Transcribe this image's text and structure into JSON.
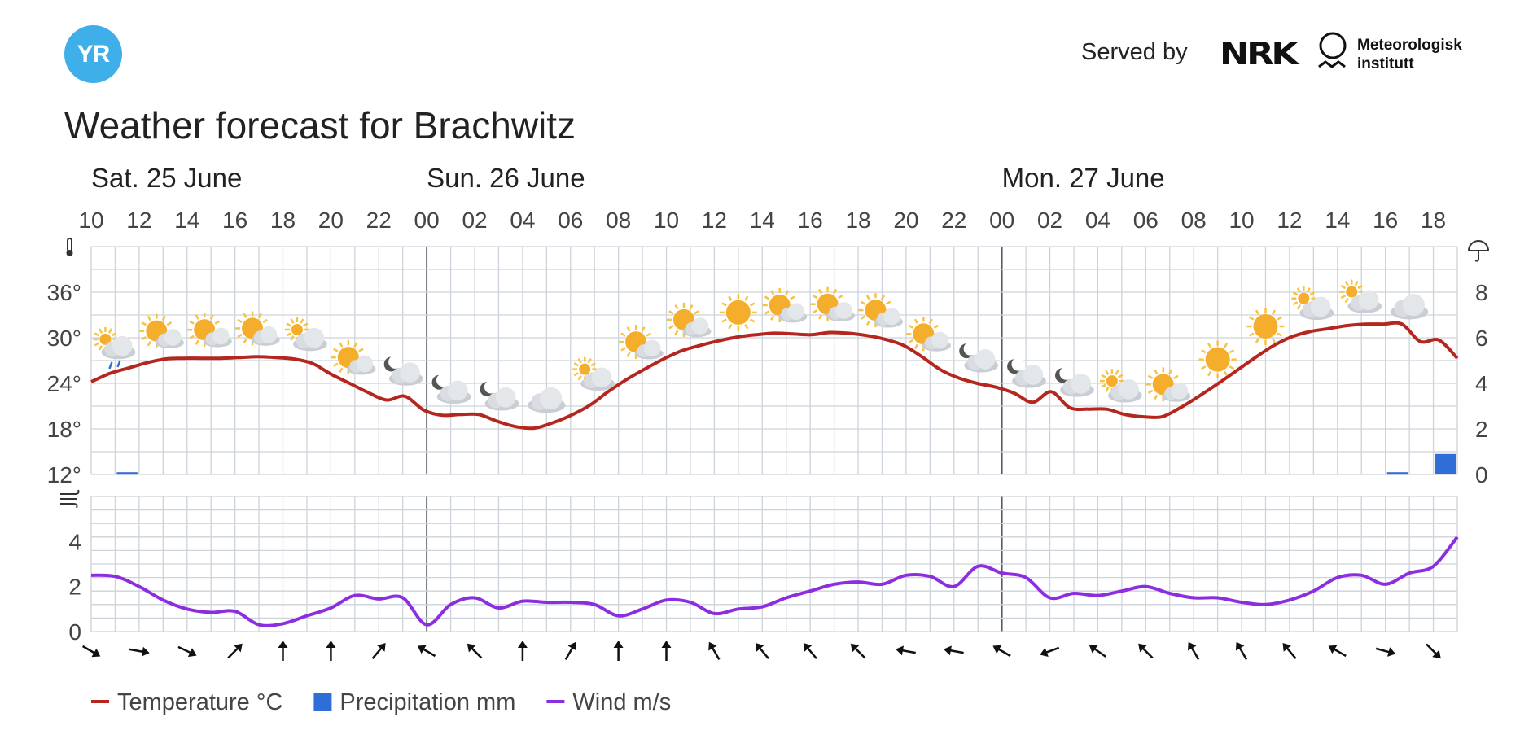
{
  "header": {
    "logo_text": "YR",
    "served_by": "Served by",
    "nrk_text": "NRK",
    "met_line1": "Meteorologisk",
    "met_line2": "institutt",
    "title": "Weather forecast for Brachwitz"
  },
  "chart_data": {
    "type": "line",
    "title": "Weather forecast for Brachwitz",
    "day_labels": [
      {
        "label": "Sat. 25 June",
        "hour_index": 0
      },
      {
        "label": "Sun. 26 June",
        "hour_index": 14
      },
      {
        "label": "Mon. 27 June",
        "hour_index": 38
      }
    ],
    "hour_tick_labels": [
      "10",
      "12",
      "14",
      "16",
      "18",
      "20",
      "22",
      "00",
      "02",
      "04",
      "06",
      "08",
      "10",
      "12",
      "14",
      "16",
      "18",
      "20",
      "22",
      "00",
      "02",
      "04",
      "06",
      "08",
      "10",
      "12",
      "14",
      "16",
      "18"
    ],
    "x_range_hours": [
      0,
      57
    ],
    "temperature_axis": {
      "ticks": [
        "12°",
        "18°",
        "24°",
        "30°",
        "36°"
      ],
      "ylim": [
        12,
        42
      ]
    },
    "precipitation_axis": {
      "ticks": [
        "0",
        "2",
        "4",
        "6",
        "8"
      ],
      "ylim": [
        0,
        10
      ]
    },
    "wind_axis": {
      "ticks": [
        "0",
        "2",
        "4"
      ],
      "ylim": [
        0,
        6
      ]
    },
    "series": [
      {
        "name": "Temperature °C",
        "color": "#b5261e",
        "values": [
          24.2,
          25.3,
          26.0,
          26.7,
          27.2,
          27.3,
          27.3,
          27.3,
          27.4,
          27.5,
          27.4,
          27.2,
          26.6,
          25.2,
          24.0,
          22.8,
          21.8,
          22.3,
          20.5,
          19.8,
          19.9,
          19.9,
          19.0,
          18.3,
          18.1,
          18.8,
          19.8,
          21.1,
          22.9,
          24.5,
          25.9,
          27.2,
          28.3,
          29.0,
          29.6,
          30.1,
          30.4,
          30.6,
          30.5,
          30.4,
          30.7,
          30.6,
          30.3,
          29.8,
          29.0,
          27.5,
          25.8,
          24.7,
          24.0,
          23.5,
          22.7,
          21.5,
          22.9,
          20.8,
          20.6,
          20.6,
          19.9,
          19.6,
          19.6,
          20.8,
          22.3,
          23.9,
          25.6,
          27.3,
          28.9,
          30.1,
          30.8,
          31.2,
          31.6,
          31.8,
          31.8,
          31.8,
          29.5,
          29.7,
          27.3
        ]
      },
      {
        "name": "Precipitation mm",
        "color": "#2f6ed8",
        "bars": [
          {
            "hour": 1,
            "value": 0.1
          },
          {
            "hour": 54,
            "value": 0.1
          },
          {
            "hour": 56,
            "value": 0.9
          }
        ]
      },
      {
        "name": "Wind m/s",
        "color": "#8c2ee0",
        "values": [
          2.5,
          2.45,
          2.0,
          1.4,
          1.0,
          0.85,
          0.9,
          0.3,
          0.35,
          0.7,
          1.05,
          1.6,
          1.45,
          1.5,
          0.3,
          1.2,
          1.5,
          1.05,
          1.35,
          1.3,
          1.3,
          1.2,
          0.7,
          1.0,
          1.4,
          1.3,
          0.8,
          1.0,
          1.1,
          1.5,
          1.8,
          2.1,
          2.2,
          2.1,
          2.5,
          2.45,
          2.0,
          2.9,
          2.6,
          2.4,
          1.5,
          1.7,
          1.6,
          1.8,
          2.0,
          1.7,
          1.5,
          1.5,
          1.3,
          1.2,
          1.4,
          1.8,
          2.4,
          2.5,
          2.1,
          2.6,
          2.9,
          4.2
        ]
      }
    ],
    "weather_icons": [
      "partly-cloudy-rain",
      "sun-cloud",
      "sun-cloud",
      "sun-cloud",
      "cloud-sun-small",
      "sun-cloud",
      "moon-cloud",
      "moon-cloud",
      "moon-cloud",
      "cloud",
      "sun-cloud-small",
      "sun-cloud",
      "sun-cloud",
      "sun",
      "sun-cloud",
      "sun-cloud",
      "sun-cloud",
      "sun-cloud",
      "moon-cloud",
      "moon-cloud",
      "moon-cloud",
      "sun-cloud-small",
      "sun-cloud",
      "sun",
      "sun",
      "cloud-sun-small",
      "cloud-sun-small",
      "cloud"
    ],
    "wind_directions_deg": [
      120,
      100,
      115,
      45,
      0,
      0,
      40,
      -60,
      -45,
      0,
      30,
      0,
      0,
      -30,
      -40,
      -40,
      -45,
      -80,
      -80,
      -60,
      -110,
      -55,
      -45,
      -30,
      -30,
      -40,
      -60,
      105,
      135
    ],
    "legend": [
      {
        "label": "Temperature °C",
        "color": "#b5261e",
        "shape": "line"
      },
      {
        "label": "Precipitation mm",
        "color": "#2f6ed8",
        "shape": "square"
      },
      {
        "label": "Wind m/s",
        "color": "#8c2ee0",
        "shape": "line"
      }
    ],
    "grid": true,
    "legend_placement": "bottom-left"
  }
}
